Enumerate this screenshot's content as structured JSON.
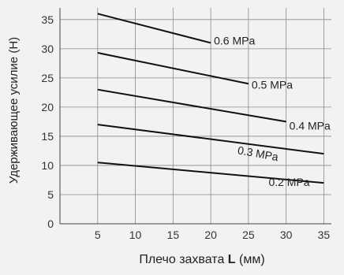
{
  "chart_data": {
    "type": "line",
    "title": "",
    "xlabel_prefix": "Плечо захвата ",
    "xlabel_symbol": "L",
    "xlabel_unit": " (мм)",
    "ylabel": "Удерживающее усилие (Н)",
    "xlim": [
      0,
      36
    ],
    "ylim": [
      0,
      37
    ],
    "x_ticks": [
      "5",
      "10",
      "15",
      "20",
      "25",
      "30",
      "35"
    ],
    "y_ticks": [
      "0",
      "5",
      "10",
      "15",
      "20",
      "25",
      "30",
      "35"
    ],
    "grid": true,
    "series": [
      {
        "name": "0.6 MPa",
        "x": [
          5,
          20
        ],
        "y": [
          36,
          31
        ]
      },
      {
        "name": "0.5 MPa",
        "x": [
          5,
          25
        ],
        "y": [
          29.3,
          24
        ]
      },
      {
        "name": "0.4 MPa",
        "x": [
          5,
          30
        ],
        "y": [
          23,
          17.5
        ]
      },
      {
        "name": "0.3 MPa",
        "x": [
          5,
          35
        ],
        "y": [
          17,
          12
        ]
      },
      {
        "name": "0.2 MPa",
        "x": [
          5,
          35
        ],
        "y": [
          10.5,
          7
        ]
      }
    ],
    "colors": {
      "line": "#111111",
      "grid": "#8a8a8a",
      "text": "#333333",
      "background": "#f2f2f2"
    }
  }
}
